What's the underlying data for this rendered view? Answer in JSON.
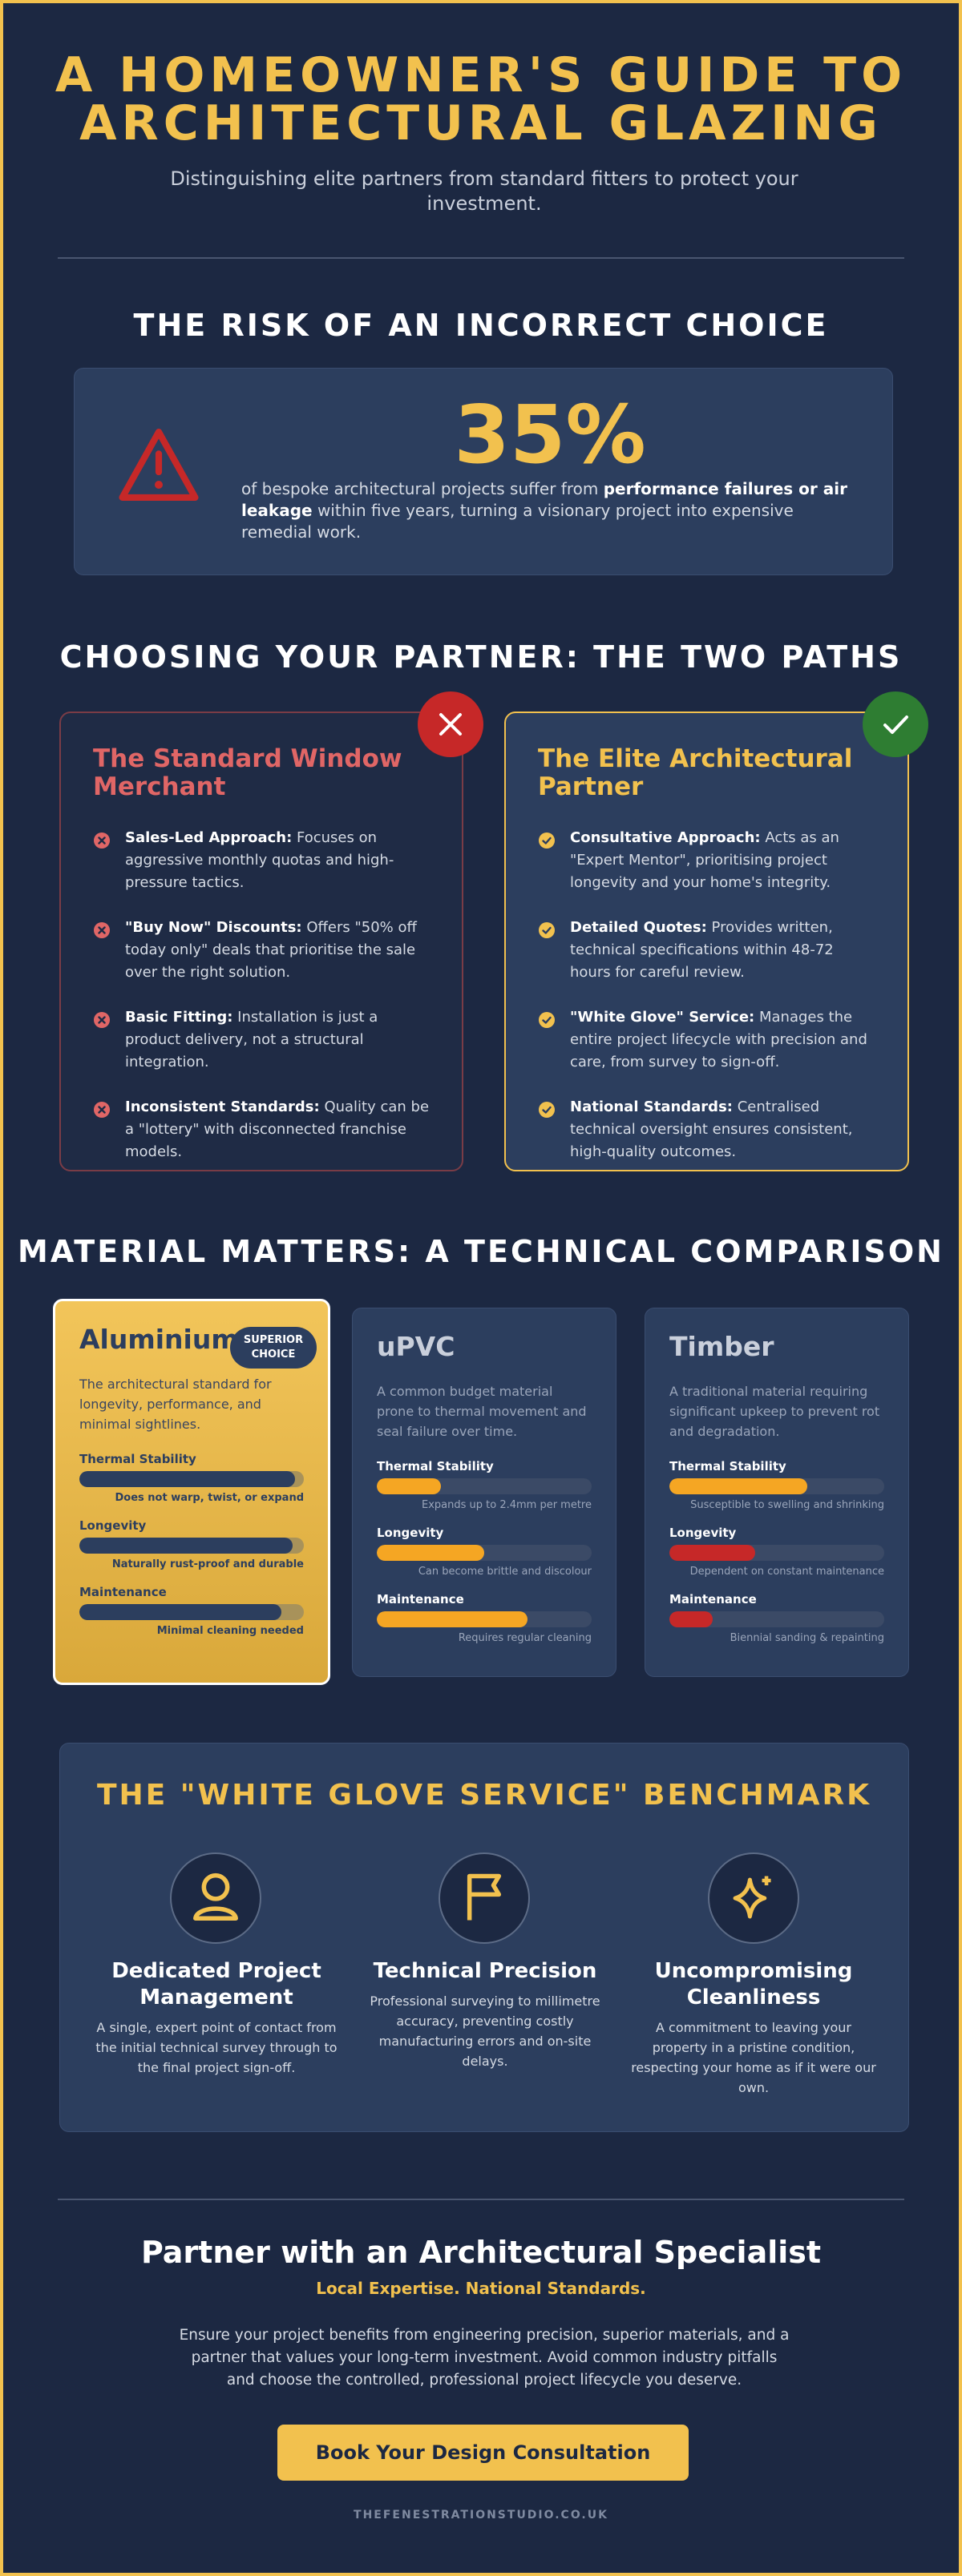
{
  "header": {
    "title": "A HOMEOWNER'S GUIDE TO ARCHITECTURAL GLAZING",
    "subtitle": "Distinguishing elite partners from standard fitters to protect your investment."
  },
  "risk": {
    "heading": "THE RISK OF AN INCORRECT CHOICE",
    "stat": "35%",
    "text_before": "of bespoke architectural projects suffer from",
    "text_bold": "performance failures or air leakage",
    "text_after": "within five years, turning a visionary project into expensive remedial work."
  },
  "paths": {
    "heading": "CHOOSING YOUR PARTNER: THE TWO PATHS",
    "standard": {
      "title": "The Standard Window Merchant",
      "items": [
        {
          "title": "Sales-Led Approach:",
          "text": "Focuses on aggressive monthly quotas and high-pressure tactics."
        },
        {
          "title": "\"Buy Now\" Discounts:",
          "text": "Offers \"50% off today only\" deals that prioritise the sale over the right solution."
        },
        {
          "title": "Basic Fitting:",
          "text": "Installation is just a product delivery, not a structural integration."
        },
        {
          "title": "Inconsistent Standards:",
          "text": "Quality can be a \"lottery\" with disconnected franchise models."
        }
      ]
    },
    "elite": {
      "title": "The Elite Architectural Partner",
      "items": [
        {
          "title": "Consultative Approach:",
          "text": "Acts as an \"Expert Mentor\", prioritising project longevity and your home's integrity."
        },
        {
          "title": "Detailed Quotes:",
          "text": "Provides written, technical specifications within 48-72 hours for careful review."
        },
        {
          "title": "\"White Glove\" Service:",
          "text": "Manages the entire project lifecycle with precision and care, from survey to sign-off."
        },
        {
          "title": "National Standards:",
          "text": "Centralised technical oversight ensures consistent, high-quality outcomes."
        }
      ]
    }
  },
  "materials": {
    "heading": "MATERIAL MATTERS: A TECHNICAL COMPARISON",
    "cards": [
      {
        "name": "Aluminium",
        "badge": "SUPERIOR CHOICE",
        "description": "The architectural standard for longevity, performance, and minimal sightlines.",
        "metrics": [
          {
            "label": "Thermal Stability",
            "value": 96,
            "color": "#2c3e5e",
            "note": "Does not warp, twist, or expand"
          },
          {
            "label": "Longevity",
            "value": 95,
            "color": "#2c3e5e",
            "note": "Naturally rust-proof and durable"
          },
          {
            "label": "Maintenance",
            "value": 90,
            "color": "#2c3e5e",
            "note": "Minimal cleaning needed"
          }
        ]
      },
      {
        "name": "uPVC",
        "description": "A common budget material prone to thermal movement and seal failure over time.",
        "metrics": [
          {
            "label": "Thermal Stability",
            "value": 30,
            "color": "#f5a623",
            "note": "Expands up to 2.4mm per metre"
          },
          {
            "label": "Longevity",
            "value": 50,
            "color": "#f5a623",
            "note": "Can become brittle and discolour"
          },
          {
            "label": "Maintenance",
            "value": 70,
            "color": "#f5a623",
            "note": "Requires regular cleaning"
          }
        ]
      },
      {
        "name": "Timber",
        "description": "A traditional material requiring significant upkeep to prevent rot and degradation.",
        "metrics": [
          {
            "label": "Thermal Stability",
            "value": 64,
            "color": "#f5a623",
            "note": "Susceptible to swelling and shrinking"
          },
          {
            "label": "Longevity",
            "value": 40,
            "color": "#c62828",
            "note": "Dependent on constant maintenance"
          },
          {
            "label": "Maintenance",
            "value": 20,
            "color": "#c62828",
            "note": "Biennial sanding & repainting"
          }
        ]
      }
    ]
  },
  "service": {
    "heading": "THE \"WHITE GLOVE SERVICE\" BENCHMARK",
    "pillars": [
      {
        "title": "Dedicated Project Management",
        "text": "A single, expert point of contact from the initial technical survey through to the final project sign-off."
      },
      {
        "title": "Technical Precision",
        "text": "Professional surveying to millimetre accuracy, preventing costly manufacturing errors and on-site delays."
      },
      {
        "title": "Uncompromising Cleanliness",
        "text": "A commitment to leaving your property in a pristine condition, respecting your home as if it were our own."
      }
    ]
  },
  "cta": {
    "heading": "Partner with an Architectural Specialist",
    "tagline": "Local Expertise. National Standards.",
    "text": "Ensure your project benefits from engineering precision, superior materials, and a partner that values your long-term investment. Avoid common industry pitfalls and choose the controlled, professional project lifecycle you deserve.",
    "button": "Book Your Design Consultation",
    "footer": "THEFENESTRATIONSTUDIO.CO.UK"
  }
}
